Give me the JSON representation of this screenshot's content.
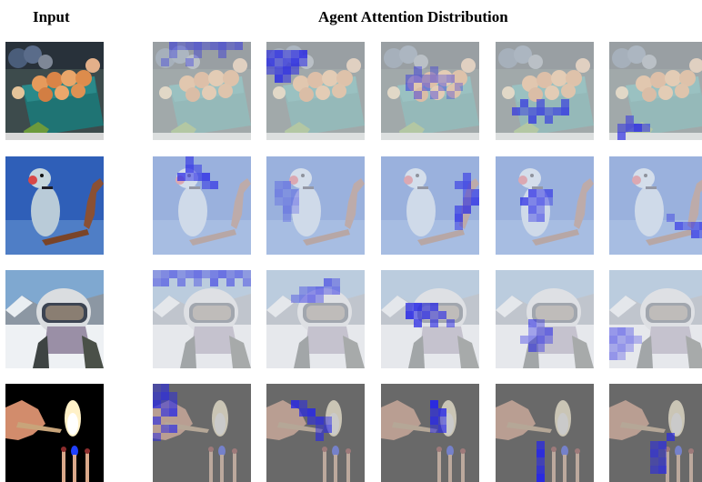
{
  "headers": {
    "input": "Input",
    "attention": "Agent Attention Distribution"
  },
  "rows": [
    {
      "id": "strawberries",
      "wash": "#dfe4e4",
      "agents": [
        {
          "cells": [
            [
              0,
              2
            ],
            [
              0,
              3
            ],
            [
              0,
              4
            ],
            [
              0,
              5
            ],
            [
              0,
              6
            ],
            [
              0,
              7
            ],
            [
              0,
              8
            ],
            [
              0,
              9
            ],
            [
              0,
              10
            ],
            [
              1,
              2
            ],
            [
              1,
              5
            ],
            [
              1,
              8
            ],
            [
              2,
              1
            ],
            [
              2,
              4
            ]
          ],
          "strength": 0.55
        },
        {
          "cells": [
            [
              1,
              0
            ],
            [
              1,
              1
            ],
            [
              1,
              2
            ],
            [
              1,
              3
            ],
            [
              1,
              4
            ],
            [
              2,
              0
            ],
            [
              2,
              1
            ],
            [
              2,
              2
            ],
            [
              2,
              3
            ],
            [
              2,
              4
            ],
            [
              3,
              0
            ],
            [
              3,
              1
            ],
            [
              3,
              2
            ],
            [
              3,
              3
            ],
            [
              4,
              1
            ],
            [
              4,
              2
            ]
          ],
          "strength": 0.85
        },
        {
          "cells": [
            [
              3,
              4
            ],
            [
              3,
              6
            ],
            [
              4,
              3
            ],
            [
              4,
              4
            ],
            [
              4,
              5
            ],
            [
              4,
              6
            ],
            [
              4,
              7
            ],
            [
              4,
              8
            ],
            [
              5,
              3
            ],
            [
              5,
              5
            ],
            [
              5,
              7
            ],
            [
              5,
              9
            ],
            [
              6,
              4
            ],
            [
              6,
              6
            ],
            [
              6,
              8
            ]
          ],
          "strength": 0.5
        },
        {
          "cells": [
            [
              7,
              3
            ],
            [
              7,
              5
            ],
            [
              7,
              8
            ],
            [
              8,
              2
            ],
            [
              8,
              3
            ],
            [
              8,
              4
            ],
            [
              8,
              5
            ],
            [
              8,
              6
            ],
            [
              8,
              7
            ],
            [
              8,
              8
            ],
            [
              9,
              4
            ],
            [
              9,
              6
            ]
          ],
          "strength": 0.75
        },
        {
          "cells": [
            [
              9,
              2
            ],
            [
              10,
              1
            ],
            [
              10,
              2
            ],
            [
              10,
              3
            ],
            [
              10,
              4
            ],
            [
              11,
              1
            ]
          ],
          "strength": 0.9
        }
      ]
    },
    {
      "id": "parrot",
      "wash": "#dde3f3",
      "agents": [
        {
          "cells": [
            [
              0,
              4
            ],
            [
              1,
              4
            ],
            [
              1,
              5
            ],
            [
              2,
              3
            ],
            [
              2,
              4
            ],
            [
              2,
              5
            ],
            [
              2,
              6
            ],
            [
              3,
              6
            ],
            [
              3,
              7
            ]
          ],
          "strength": 0.75
        },
        {
          "cells": [
            [
              3,
              1
            ],
            [
              3,
              2
            ],
            [
              4,
              1
            ],
            [
              4,
              2
            ],
            [
              4,
              3
            ],
            [
              5,
              1
            ],
            [
              5,
              2
            ],
            [
              5,
              3
            ],
            [
              6,
              2
            ],
            [
              6,
              3
            ],
            [
              7,
              2
            ]
          ],
          "strength": 0.35
        },
        {
          "cells": [
            [
              2,
              10
            ],
            [
              3,
              9
            ],
            [
              3,
              10
            ],
            [
              4,
              10
            ],
            [
              4,
              11
            ],
            [
              5,
              10
            ],
            [
              5,
              11
            ],
            [
              6,
              9
            ],
            [
              6,
              10
            ],
            [
              7,
              9
            ],
            [
              8,
              9
            ]
          ],
          "strength": 0.75
        },
        {
          "cells": [
            [
              4,
              4
            ],
            [
              4,
              5
            ],
            [
              4,
              6
            ],
            [
              5,
              3
            ],
            [
              5,
              4
            ],
            [
              5,
              5
            ],
            [
              5,
              6
            ],
            [
              6,
              4
            ],
            [
              6,
              5
            ],
            [
              7,
              4
            ],
            [
              7,
              5
            ]
          ],
          "strength": 0.7
        },
        {
          "cells": [
            [
              7,
              7
            ],
            [
              8,
              8
            ],
            [
              8,
              9
            ],
            [
              8,
              10
            ],
            [
              8,
              11
            ],
            [
              9,
              10
            ],
            [
              9,
              11
            ]
          ],
          "strength": 0.65
        }
      ]
    },
    {
      "id": "skier",
      "wash": "#e0e2e6",
      "agents": [
        {
          "cells": [
            [
              0,
              0
            ],
            [
              0,
              1
            ],
            [
              0,
              2
            ],
            [
              0,
              3
            ],
            [
              0,
              4
            ],
            [
              0,
              5
            ],
            [
              0,
              6
            ],
            [
              0,
              7
            ],
            [
              0,
              8
            ],
            [
              0,
              9
            ],
            [
              0,
              10
            ],
            [
              0,
              11
            ],
            [
              1,
              0
            ],
            [
              1,
              1
            ],
            [
              1,
              3
            ],
            [
              1,
              5
            ],
            [
              1,
              7
            ],
            [
              1,
              9
            ],
            [
              1,
              11
            ]
          ],
          "strength": 0.55
        },
        {
          "cells": [
            [
              1,
              7
            ],
            [
              1,
              8
            ],
            [
              2,
              4
            ],
            [
              2,
              5
            ],
            [
              2,
              6
            ],
            [
              2,
              7
            ],
            [
              2,
              8
            ],
            [
              3,
              3
            ],
            [
              3,
              4
            ],
            [
              3,
              5
            ],
            [
              3,
              6
            ]
          ],
          "strength": 0.55
        },
        {
          "cells": [
            [
              4,
              3
            ],
            [
              4,
              4
            ],
            [
              4,
              5
            ],
            [
              4,
              6
            ],
            [
              5,
              3
            ],
            [
              5,
              4
            ],
            [
              5,
              5
            ],
            [
              5,
              6
            ],
            [
              5,
              7
            ],
            [
              6,
              4
            ],
            [
              6,
              6
            ],
            [
              6,
              8
            ]
          ],
          "strength": 0.85
        },
        {
          "cells": [
            [
              6,
              4
            ],
            [
              6,
              5
            ],
            [
              7,
              4
            ],
            [
              7,
              5
            ],
            [
              7,
              6
            ],
            [
              8,
              3
            ],
            [
              8,
              4
            ],
            [
              8,
              5
            ],
            [
              8,
              6
            ],
            [
              9,
              4
            ],
            [
              9,
              5
            ]
          ],
          "strength": 0.65
        },
        {
          "cells": [
            [
              7,
              0
            ],
            [
              7,
              1
            ],
            [
              7,
              2
            ],
            [
              8,
              0
            ],
            [
              8,
              1
            ],
            [
              8,
              2
            ],
            [
              8,
              3
            ],
            [
              9,
              0
            ],
            [
              9,
              1
            ],
            [
              9,
              2
            ],
            [
              10,
              0
            ],
            [
              10,
              1
            ]
          ],
          "strength": 0.5
        }
      ]
    },
    {
      "id": "matches",
      "wash": "#a9a9a9",
      "agents": [
        {
          "cells": [
            [
              0,
              0
            ],
            [
              0,
              1
            ],
            [
              1,
              0
            ],
            [
              1,
              1
            ],
            [
              1,
              2
            ],
            [
              2,
              0
            ],
            [
              2,
              1
            ],
            [
              2,
              2
            ],
            [
              3,
              1
            ],
            [
              3,
              2
            ],
            [
              4,
              0
            ],
            [
              5,
              1
            ],
            [
              5,
              2
            ],
            [
              6,
              0
            ]
          ],
          "strength": 0.8
        },
        {
          "cells": [
            [
              2,
              3
            ],
            [
              2,
              4
            ],
            [
              3,
              4
            ],
            [
              3,
              5
            ],
            [
              4,
              5
            ],
            [
              4,
              6
            ],
            [
              4,
              7
            ],
            [
              5,
              6
            ],
            [
              5,
              7
            ],
            [
              6,
              6
            ]
          ],
          "strength": 0.85
        },
        {
          "cells": [
            [
              2,
              6
            ],
            [
              3,
              6
            ],
            [
              3,
              7
            ],
            [
              4,
              6
            ],
            [
              4,
              7
            ],
            [
              5,
              6
            ],
            [
              5,
              7
            ]
          ],
          "strength": 0.95
        },
        {
          "cells": [
            [
              7,
              5
            ],
            [
              8,
              5
            ],
            [
              9,
              5
            ],
            [
              10,
              5
            ],
            [
              11,
              5
            ]
          ],
          "strength": 1.0
        },
        {
          "cells": [
            [
              7,
              5
            ],
            [
              7,
              6
            ],
            [
              8,
              5
            ],
            [
              8,
              6
            ],
            [
              9,
              5
            ],
            [
              9,
              6
            ],
            [
              10,
              5
            ],
            [
              10,
              6
            ],
            [
              6,
              7
            ]
          ],
          "strength": 0.75
        }
      ]
    }
  ]
}
